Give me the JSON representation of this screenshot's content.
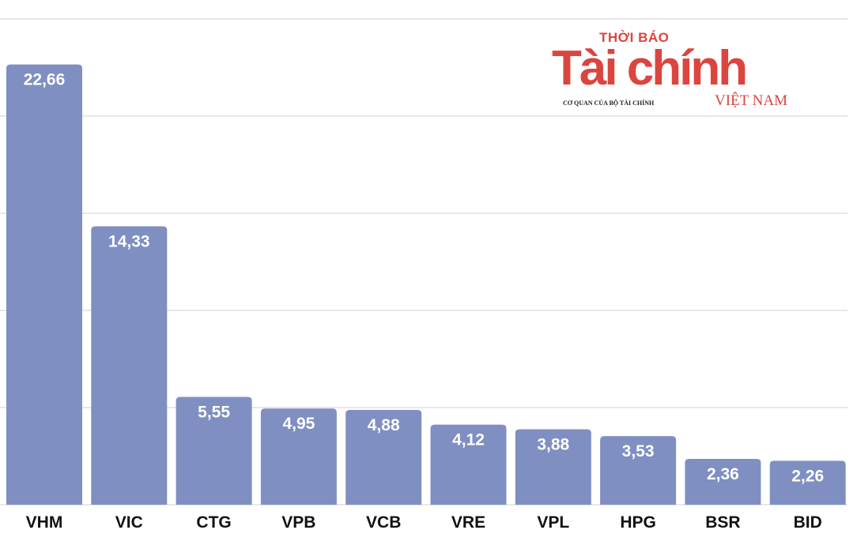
{
  "chart_data": {
    "type": "bar",
    "categories": [
      "VHM",
      "VIC",
      "CTG",
      "VPB",
      "VCB",
      "VRE",
      "VPL",
      "HPG",
      "BSR",
      "BID"
    ],
    "values": [
      22.66,
      14.33,
      5.55,
      4.95,
      4.88,
      4.12,
      3.88,
      3.53,
      2.36,
      2.26
    ],
    "data_labels": [
      "22,66",
      "14,33",
      "5,55",
      "4,95",
      "4,88",
      "4,12",
      "3,88",
      "3,53",
      "2,36",
      "2,26"
    ],
    "ylim": [
      0,
      25
    ],
    "grid": true,
    "y_tick_labels_visible": false,
    "bar_color": "#7f8fc1",
    "label_color": "#ffffff"
  },
  "logo": {
    "top": "THỜI BÁO",
    "main": "Tài chính",
    "sub": "CƠ QUAN CỦA BỘ TÀI CHÍNH",
    "country": "VIỆT NAM",
    "color": "#db4540"
  }
}
